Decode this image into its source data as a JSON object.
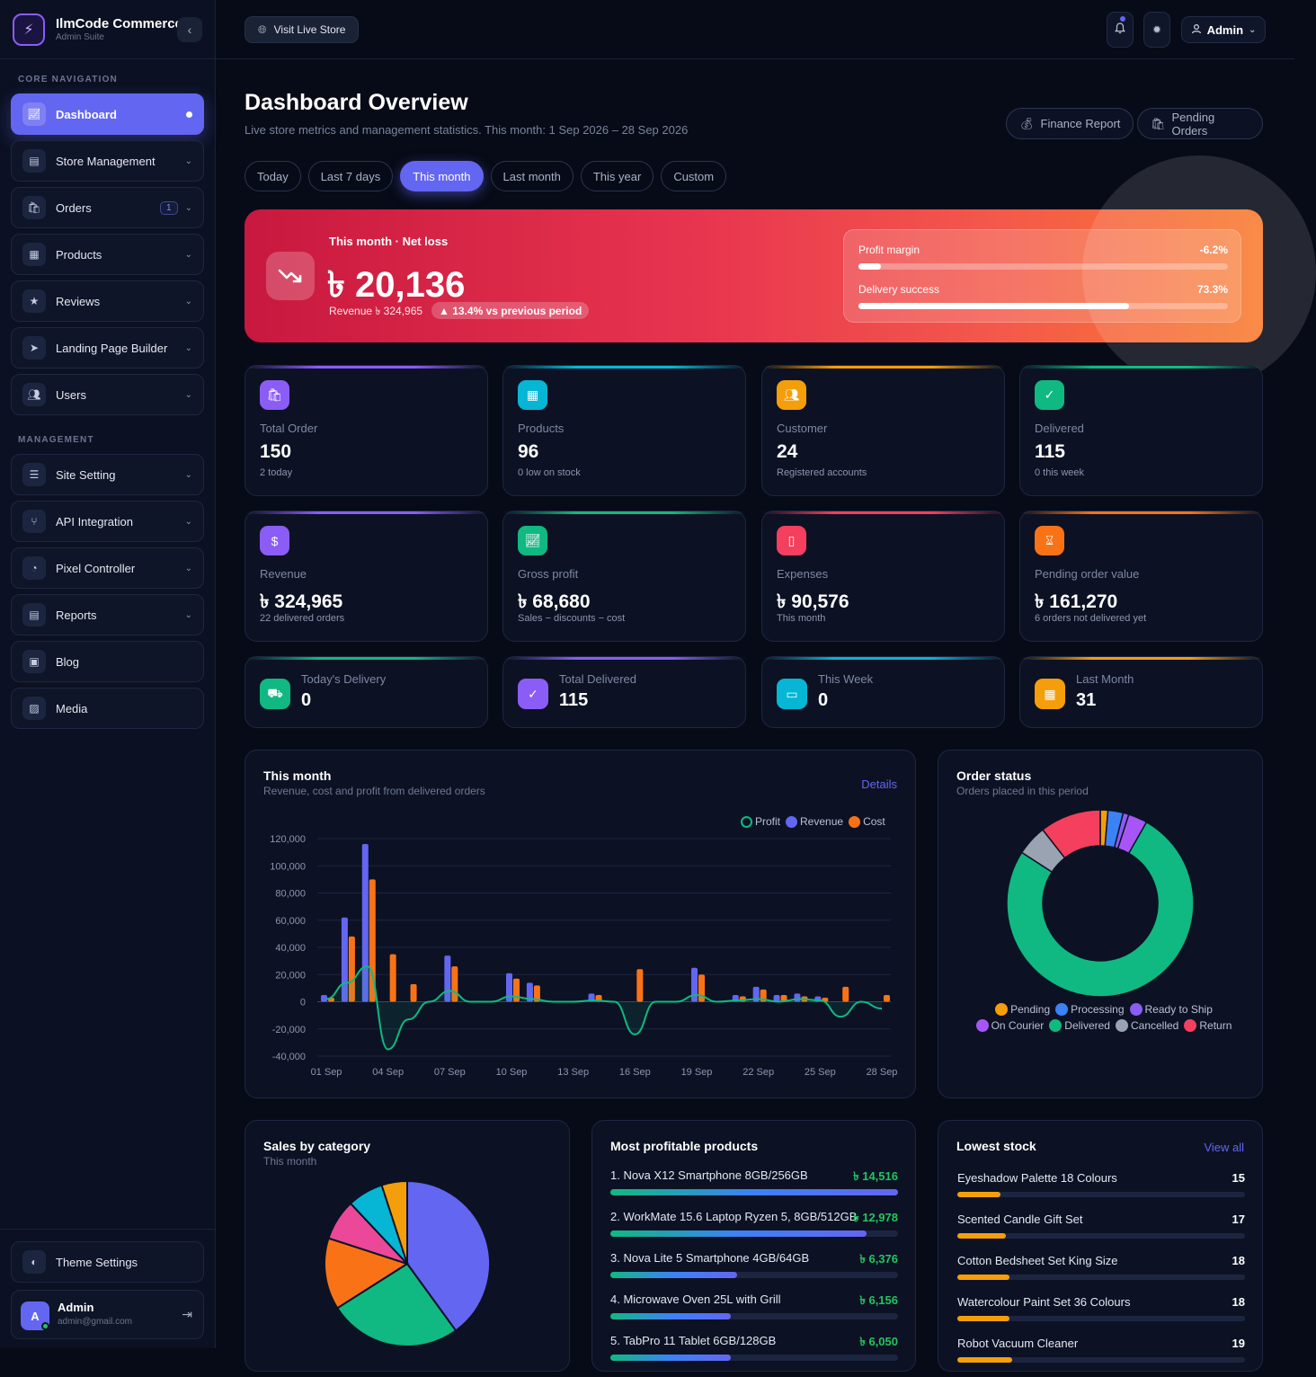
{
  "brand": {
    "title": "IlmCode Commerce",
    "subtitle": "Admin Suite",
    "logo_icon": "bolt-icon",
    "collapse_icon": "chevron-left-icon"
  },
  "nav": {
    "section_core": "CORE NAVIGATION",
    "section_management": "MANAGEMENT",
    "items": [
      {
        "label": "Dashboard",
        "icon": "chart-icon",
        "active": true
      },
      {
        "label": "Store Management",
        "icon": "store-icon"
      },
      {
        "label": "Orders",
        "icon": "bag-icon",
        "badge": "1"
      },
      {
        "label": "Products",
        "icon": "boxes-icon"
      },
      {
        "label": "Reviews",
        "icon": "star-icon"
      },
      {
        "label": "Landing Page Builder",
        "icon": "paper-plane-icon"
      },
      {
        "label": "Users",
        "icon": "users-icon"
      },
      {
        "label": "Site Setting",
        "icon": "sliders-icon"
      },
      {
        "label": "API Integration",
        "icon": "branch-icon"
      },
      {
        "label": "Pixel Controller",
        "icon": "pie-icon"
      },
      {
        "label": "Reports",
        "icon": "document-icon"
      },
      {
        "label": "Blog",
        "icon": "newspaper-icon"
      },
      {
        "label": "Media",
        "icon": "images-icon"
      }
    ],
    "theme_settings": "Theme Settings",
    "user_name": "Admin",
    "user_email": "admin@gmail.com",
    "user_initial": "A"
  },
  "topbar": {
    "visit_store": "Visit Live Store",
    "admin_label": "Admin"
  },
  "header": {
    "title": "Dashboard Overview",
    "subtitle": "Live store metrics and management statistics. This month: 1 Sep 2026 – 28 Sep 2026",
    "finance_report": "Finance Report",
    "pending_orders": "Pending Orders"
  },
  "periods": [
    "Today",
    "Last 7 days",
    "This month",
    "Last month",
    "This year",
    "Custom"
  ],
  "active_period": 2,
  "hero": {
    "label": "This month · Net loss",
    "value": "৳ 20,136",
    "revenue": "Revenue ৳ 324,965",
    "change": "▲ 13.4% vs previous period",
    "profit_margin_label": "Profit margin",
    "profit_margin_value": "-6.2%",
    "profit_margin_fill": 0.062,
    "delivery_label": "Delivery success",
    "delivery_value": "73.3%",
    "delivery_fill": 0.733
  },
  "stats": [
    {
      "label": "Total Order",
      "value": "150",
      "sub": "2 today",
      "color": "#8b5cf6",
      "icon": "bag-icon"
    },
    {
      "label": "Products",
      "value": "96",
      "sub": "0 low on stock",
      "color": "#06b6d4",
      "icon": "boxes-icon"
    },
    {
      "label": "Customer",
      "value": "24",
      "sub": "Registered accounts",
      "color": "#f59e0b",
      "icon": "users-icon"
    },
    {
      "label": "Delivered",
      "value": "115",
      "sub": "0 this week",
      "color": "#10b981",
      "icon": "check-icon"
    },
    {
      "label": "Revenue",
      "value": "৳ 324,965",
      "sub": "22 delivered orders",
      "color": "#8b5cf6",
      "icon": "money-bag-icon"
    },
    {
      "label": "Gross profit",
      "value": "৳ 68,680",
      "sub": "Sales − discounts − cost",
      "color": "#10b981",
      "icon": "chart-icon"
    },
    {
      "label": "Expenses",
      "value": "৳ 90,576",
      "sub": "This month",
      "color": "#f43f5e",
      "icon": "receipt-icon"
    },
    {
      "label": "Pending order value",
      "value": "৳ 161,270",
      "sub": "6 orders not delivered yet",
      "color": "#f97316",
      "icon": "hourglass-icon"
    }
  ],
  "small_stats": [
    {
      "label": "Today's Delivery",
      "value": "0",
      "color": "#10b981",
      "icon": "truck-icon"
    },
    {
      "label": "Total Delivered",
      "value": "115",
      "color": "#8b5cf6",
      "icon": "check-circle-icon"
    },
    {
      "label": "This Week",
      "value": "0",
      "color": "#06b6d4",
      "icon": "calendar-icon"
    },
    {
      "label": "Last Month",
      "value": "31",
      "color": "#f59e0b",
      "icon": "calendar-grid-icon"
    }
  ],
  "month_panel": {
    "title": "This month",
    "subtitle": "Revenue, cost and profit from delivered orders",
    "link": "Details"
  },
  "chart_data": {
    "type": "bar",
    "title": "This month",
    "x_ticks": [
      "01 Sep",
      "04 Sep",
      "07 Sep",
      "10 Sep",
      "13 Sep",
      "16 Sep",
      "19 Sep",
      "22 Sep",
      "25 Sep",
      "28 Sep"
    ],
    "y_ticks": [
      "120,000",
      "100,000",
      "80,000",
      "60,000",
      "40,000",
      "20,000",
      "0",
      "-20,000",
      "-40,000"
    ],
    "ylim": [
      -40000,
      120000
    ],
    "legend": [
      "Profit",
      "Revenue",
      "Cost"
    ],
    "colors": {
      "Profit": "#10b981",
      "Revenue": "#6366f1",
      "Cost": "#f97316"
    },
    "days": [
      "01 Sep",
      "02 Sep",
      "03 Sep",
      "04 Sep",
      "05 Sep",
      "06 Sep",
      "07 Sep",
      "08 Sep",
      "09 Sep",
      "10 Sep",
      "11 Sep",
      "12 Sep",
      "13 Sep",
      "14 Sep",
      "15 Sep",
      "16 Sep",
      "17 Sep",
      "18 Sep",
      "19 Sep",
      "20 Sep",
      "21 Sep",
      "22 Sep",
      "23 Sep",
      "24 Sep",
      "25 Sep",
      "26 Sep",
      "27 Sep",
      "28 Sep"
    ],
    "series": [
      {
        "name": "Revenue",
        "values": [
          5000,
          62000,
          116000,
          0,
          0,
          0,
          34000,
          0,
          0,
          21000,
          14000,
          0,
          0,
          6000,
          0,
          0,
          0,
          0,
          25000,
          0,
          5000,
          11000,
          5000,
          6000,
          4000,
          0,
          0,
          0
        ]
      },
      {
        "name": "Cost",
        "values": [
          3000,
          48000,
          90000,
          35000,
          13000,
          0,
          26000,
          0,
          0,
          17000,
          12000,
          0,
          0,
          5000,
          0,
          24000,
          0,
          0,
          20000,
          0,
          4000,
          9000,
          5000,
          4000,
          3000,
          11000,
          0,
          5000
        ]
      },
      {
        "name": "Profit",
        "values": [
          2000,
          14000,
          26000,
          -35000,
          -13000,
          0,
          8000,
          0,
          0,
          4000,
          2000,
          0,
          0,
          1000,
          0,
          -24000,
          0,
          0,
          5000,
          0,
          1000,
          2000,
          0,
          2000,
          1000,
          -11000,
          0,
          -5000
        ]
      }
    ]
  },
  "order_status": {
    "title": "Order status",
    "subtitle": "Orders placed in this period",
    "chart_data": {
      "type": "pie",
      "segments": [
        {
          "name": "Pending",
          "value": 2,
          "color": "#f59e0b"
        },
        {
          "name": "Processing",
          "value": 4,
          "color": "#3b82f6"
        },
        {
          "name": "Ready to Ship",
          "value": 1.5,
          "color": "#8b5cf6"
        },
        {
          "name": "On Courier",
          "value": 5,
          "color": "#a855f7"
        },
        {
          "name": "Delivered",
          "value": 115,
          "color": "#10b981"
        },
        {
          "name": "Cancelled",
          "value": 8,
          "color": "#9aa3b2"
        },
        {
          "name": "Return",
          "value": 16,
          "color": "#f43f5e"
        }
      ]
    }
  },
  "sales_category": {
    "title": "Sales by category",
    "subtitle": "This month",
    "chart_data": {
      "type": "pie",
      "segments": [
        {
          "value": 40,
          "color": "#6366f1"
        },
        {
          "value": 26,
          "color": "#10b981"
        },
        {
          "value": 14,
          "color": "#f97316"
        },
        {
          "value": 8,
          "color": "#ec4899"
        },
        {
          "value": 7,
          "color": "#06b6d4"
        },
        {
          "value": 5,
          "color": "#f59e0b"
        }
      ]
    }
  },
  "profitable": {
    "title": "Most profitable products",
    "items": [
      {
        "name": "1. Nova X12 Smartphone 8GB/256GB",
        "value": "৳ 14,516",
        "fill": 1.0
      },
      {
        "name": "2. WorkMate 15.6 Laptop Ryzen 5, 8GB/512GB",
        "value": "৳ 12,978",
        "fill": 0.89
      },
      {
        "name": "3. Nova Lite 5 Smartphone 4GB/64GB",
        "value": "৳ 6,376",
        "fill": 0.44
      },
      {
        "name": "4. Microwave Oven 25L with Grill",
        "value": "৳ 6,156",
        "fill": 0.42
      },
      {
        "name": "5. TabPro 11 Tablet 6GB/128GB",
        "value": "৳ 6,050",
        "fill": 0.42
      }
    ]
  },
  "lowest_stock": {
    "title": "Lowest stock",
    "link": "View all",
    "items": [
      {
        "name": "Eyeshadow Palette 18 Colours",
        "value": "15",
        "fill": 0.15
      },
      {
        "name": "Scented Candle Gift Set",
        "value": "17",
        "fill": 0.17
      },
      {
        "name": "Cotton Bedsheet Set King Size",
        "value": "18",
        "fill": 0.18
      },
      {
        "name": "Watercolour Paint Set 36 Colours",
        "value": "18",
        "fill": 0.18
      },
      {
        "name": "Robot Vacuum Cleaner",
        "value": "19",
        "fill": 0.19
      }
    ]
  }
}
